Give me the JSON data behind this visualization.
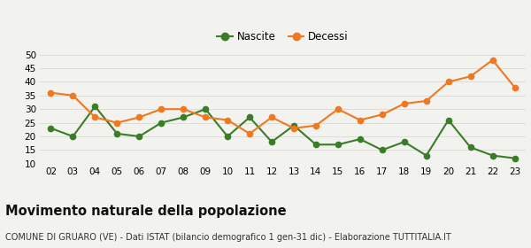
{
  "years": [
    "02",
    "03",
    "04",
    "05",
    "06",
    "07",
    "08",
    "09",
    "10",
    "11",
    "12",
    "13",
    "14",
    "15",
    "16",
    "17",
    "18",
    "19",
    "20",
    "21",
    "22",
    "23"
  ],
  "nascite": [
    23,
    20,
    31,
    21,
    20,
    25,
    27,
    30,
    20,
    27,
    18,
    24,
    17,
    17,
    19,
    15,
    18,
    13,
    26,
    16,
    13,
    12
  ],
  "decessi": [
    36,
    35,
    27,
    25,
    27,
    30,
    30,
    27,
    26,
    21,
    27,
    23,
    24,
    30,
    26,
    28,
    32,
    33,
    40,
    42,
    48,
    38
  ],
  "nascite_color": "#3a7d27",
  "decessi_color": "#f07820",
  "background_color": "#f2f2ee",
  "ylim": [
    10,
    50
  ],
  "yticks": [
    10,
    15,
    20,
    25,
    30,
    35,
    40,
    45,
    50
  ],
  "title": "Movimento naturale della popolazione",
  "subtitle": "COMUNE DI GRUARO (VE) - Dati ISTAT (bilancio demografico 1 gen-31 dic) - Elaborazione TUTTITALIA.IT",
  "legend_nascite": "Nascite",
  "legend_decessi": "Decessi",
  "title_fontsize": 10.5,
  "subtitle_fontsize": 7.0,
  "marker_size": 4.5,
  "line_width": 1.5,
  "grid_color": "#d8d8d8",
  "tick_fontsize": 7.5
}
